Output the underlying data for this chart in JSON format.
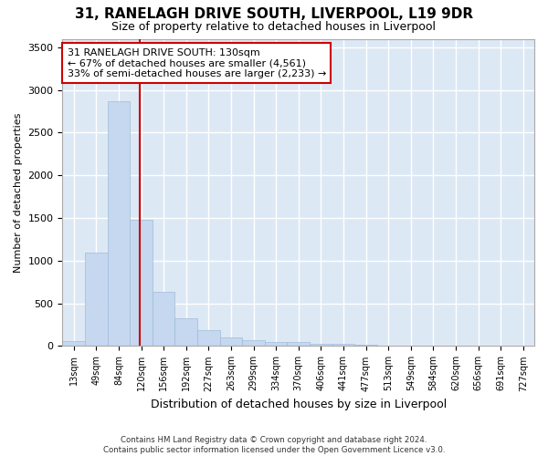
{
  "title_line1": "31, RANELAGH DRIVE SOUTH, LIVERPOOL, L19 9DR",
  "title_line2": "Size of property relative to detached houses in Liverpool",
  "xlabel": "Distribution of detached houses by size in Liverpool",
  "ylabel": "Number of detached properties",
  "categories": [
    "13sqm",
    "49sqm",
    "84sqm",
    "120sqm",
    "156sqm",
    "192sqm",
    "227sqm",
    "263sqm",
    "299sqm",
    "334sqm",
    "370sqm",
    "406sqm",
    "441sqm",
    "477sqm",
    "513sqm",
    "549sqm",
    "584sqm",
    "620sqm",
    "656sqm",
    "691sqm",
    "727sqm"
  ],
  "values": [
    55,
    1095,
    2870,
    1475,
    630,
    330,
    190,
    100,
    65,
    48,
    48,
    30,
    25,
    12,
    3,
    2,
    1,
    0,
    0,
    0,
    0
  ],
  "bar_color": "#c5d8f0",
  "bar_edge_color": "#a0bcd8",
  "highlight_line_color": "#cc0000",
  "highlight_line_xindex": 3,
  "annotation_line1": "31 RANELAGH DRIVE SOUTH: 130sqm",
  "annotation_line2": "← 67% of detached houses are smaller (4,561)",
  "annotation_line3": "33% of semi-detached houses are larger (2,233) →",
  "annotation_box_edgecolor": "#cc0000",
  "ylim": [
    0,
    3600
  ],
  "yticks": [
    0,
    500,
    1000,
    1500,
    2000,
    2500,
    3000,
    3500
  ],
  "plot_bg_color": "#dde8f5",
  "fig_bg_color": "#ffffff",
  "grid_color": "#ffffff",
  "footer_line1": "Contains HM Land Registry data © Crown copyright and database right 2024.",
  "footer_line2": "Contains public sector information licensed under the Open Government Licence v3.0."
}
